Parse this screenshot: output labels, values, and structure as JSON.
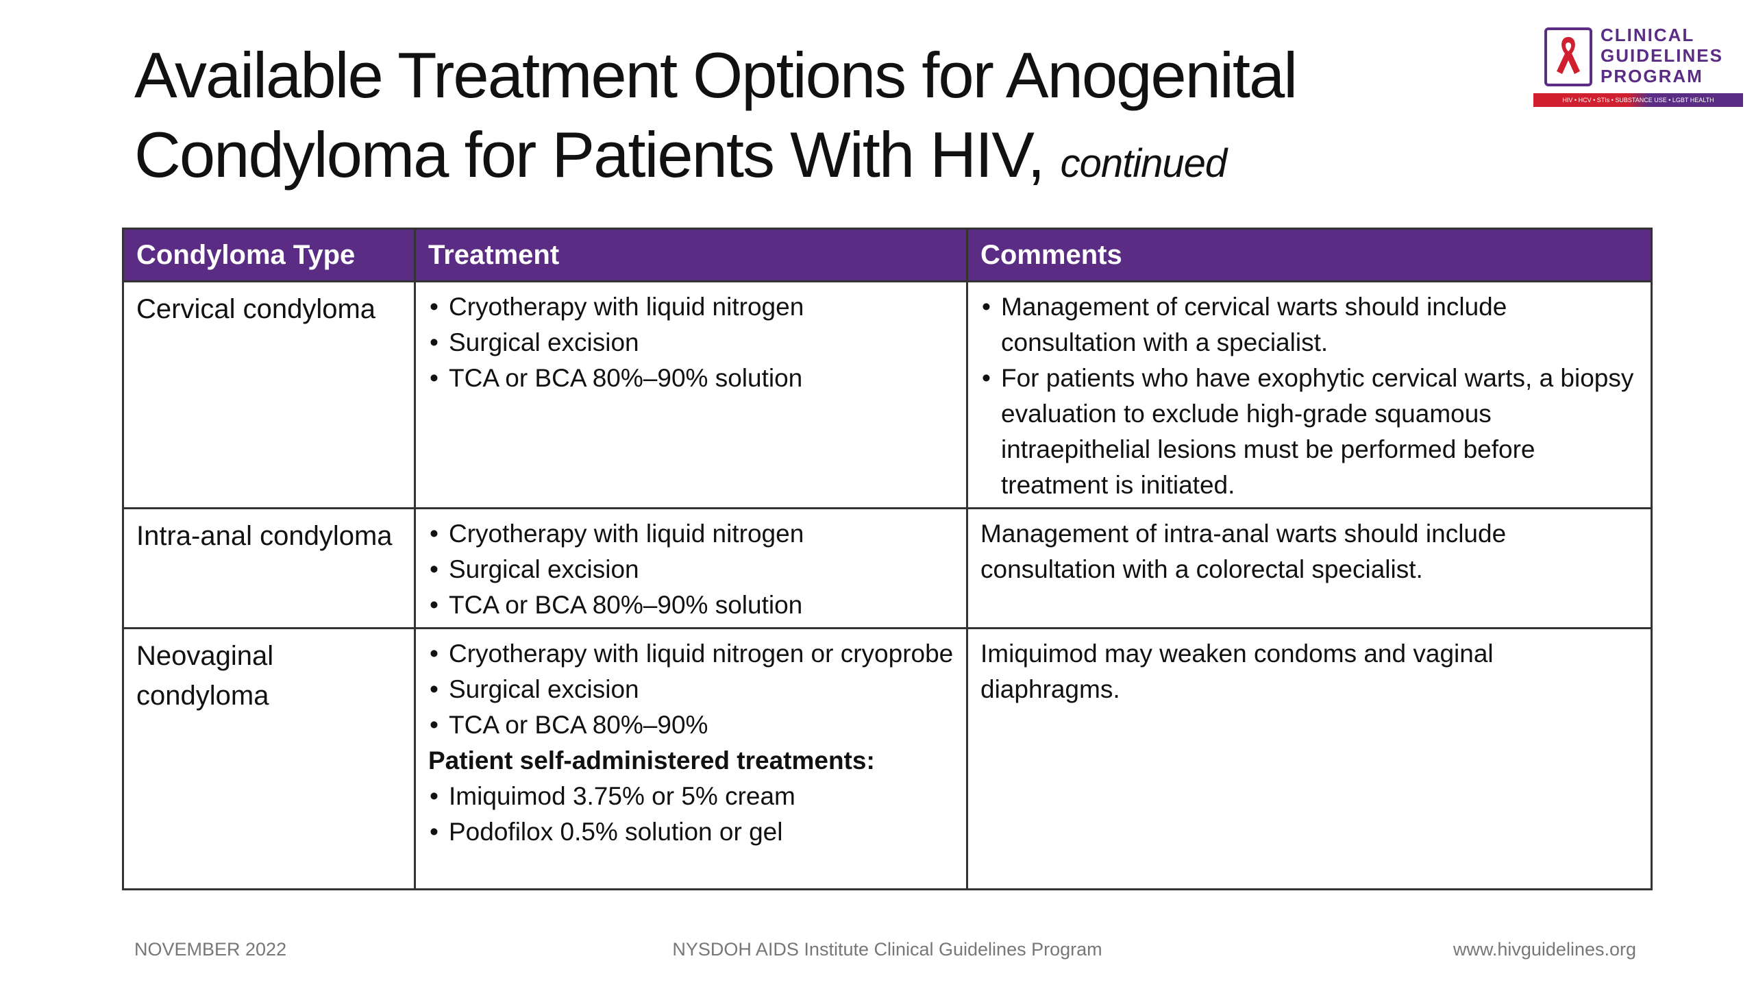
{
  "header": {
    "title_line1": "Available Treatment Options for Anogenital",
    "title_line2": "Condyloma for Patients With HIV,",
    "title_suffix": "continued"
  },
  "logo": {
    "lines": [
      "CLINICAL",
      "GUIDELINES",
      "PROGRAM"
    ],
    "tagline": "HIV • HCV • STIs • SUBSTANCE USE • LGBT HEALTH"
  },
  "table": {
    "columns": [
      "Condyloma Type",
      "Treatment",
      "Comments"
    ],
    "rows": [
      {
        "type": "Cervical condyloma",
        "treatment": [
          "Cryotherapy with liquid nitrogen",
          "Surgical excision",
          "TCA or BCA 80%–90% solution"
        ],
        "comments": [
          "Management of cervical warts should include consultation with a specialist.",
          "For patients who have exophytic cervical warts, a biopsy evaluation to exclude high-grade squamous intraepithelial lesions must be performed before treatment is initiated."
        ]
      },
      {
        "type": "Intra-anal condyloma",
        "treatment": [
          "Cryotherapy with liquid nitrogen",
          "Surgical excision",
          "TCA or BCA 80%–90% solution"
        ],
        "comment": "Management of intra-anal warts should include consultation with a colorectal specialist."
      },
      {
        "type": "Neovaginal condyloma",
        "treatment": [
          "Cryotherapy with liquid nitrogen or cryoprobe",
          "Surgical excision",
          "TCA or BCA 80%–90%"
        ],
        "self_admin_heading": "Patient self-administered treatments:",
        "self_admin": [
          "Imiquimod 3.75% or 5% cream",
          "Podofilox 0.5% solution or gel"
        ],
        "comment": "Imiquimod may weaken condoms and vaginal diaphragms."
      }
    ]
  },
  "footer": {
    "date": "NOVEMBER 2022",
    "center": "NYSDOH AIDS Institute Clinical Guidelines Program",
    "url": "www.hivguidelines.org"
  }
}
